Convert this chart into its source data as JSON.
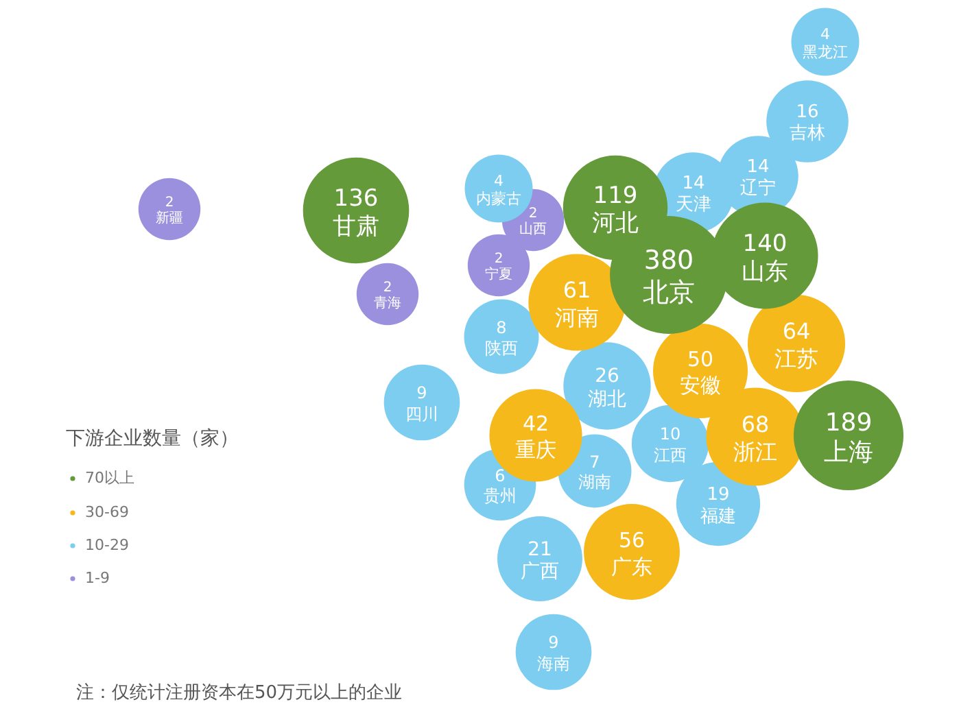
{
  "chart_data": {
    "type": "other",
    "legend_title": "下游企业数量（家）",
    "legend": "left",
    "data_labels": true,
    "annotations": [
      "注：仅统计注册资本在50万元以上的企业"
    ],
    "categories": [
      "北京",
      "上海",
      "山东",
      "甘肃",
      "河北",
      "浙江",
      "江苏",
      "河南",
      "广东",
      "安徽",
      "重庆",
      "湖北",
      "广西",
      "福建",
      "吉林",
      "辽宁",
      "天津",
      "江西",
      "四川",
      "海南",
      "陕西",
      "湖南",
      "贵州",
      "黑龙江",
      "内蒙古",
      "新疆",
      "青海",
      "宁夏",
      "山西"
    ],
    "series": [
      {
        "name": "70以上",
        "color": "#659a3a",
        "values": [
          380,
          189,
          140,
          136,
          119,
          null,
          null,
          null,
          null,
          null,
          null,
          null,
          null,
          null,
          null,
          null,
          null,
          null,
          null,
          null,
          null,
          null,
          null,
          null,
          null,
          null,
          null,
          null,
          null
        ]
      },
      {
        "name": "30-69",
        "color": "#f5b91c",
        "values": [
          null,
          null,
          null,
          null,
          null,
          68,
          64,
          61,
          56,
          50,
          42,
          null,
          null,
          null,
          null,
          null,
          null,
          null,
          null,
          null,
          null,
          null,
          null,
          null,
          null,
          null,
          null,
          null,
          null
        ]
      },
      {
        "name": "10-29",
        "color": "#7ccdf0",
        "values": [
          null,
          null,
          null,
          null,
          null,
          null,
          null,
          null,
          null,
          null,
          null,
          26,
          21,
          19,
          16,
          14,
          14,
          10,
          9,
          9,
          8,
          7,
          6,
          4,
          4,
          null,
          null,
          null,
          null
        ]
      },
      {
        "name": "1-9",
        "color": "#9b90dd",
        "values": [
          null,
          null,
          null,
          null,
          null,
          null,
          null,
          null,
          null,
          null,
          null,
          null,
          null,
          null,
          null,
          null,
          null,
          null,
          null,
          null,
          null,
          null,
          null,
          null,
          null,
          2,
          2,
          2,
          2
        ]
      }
    ]
  }
}
